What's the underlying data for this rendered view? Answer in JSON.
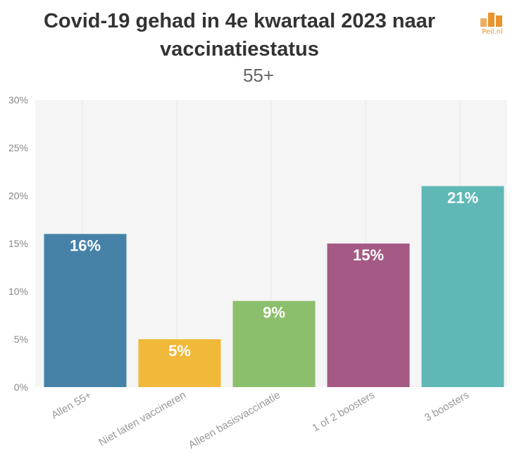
{
  "title_line1": "Covid-19 gehad in 4e kwartaal 2023 naar",
  "title_line2": "vaccinatiestatus",
  "subtitle": "55+",
  "logo_text": "Peil.nl",
  "colors": {
    "bar_1": "#4682a8",
    "bar_2": "#f0b93a",
    "bar_3": "#8cbf6b",
    "bar_4": "#a55985",
    "bar_5": "#60b8b6",
    "logo": "#e8932b",
    "plot_bg": "#f5f5f5"
  },
  "chart_data": {
    "type": "bar",
    "categories": [
      "Allen 55+",
      "Niet laten vaccineren",
      "Alleen basisvaccinatie",
      "1 of 2 boosters",
      "3 boosters"
    ],
    "values": [
      16,
      5,
      9,
      15,
      21
    ],
    "data_labels": [
      "16%",
      "5%",
      "9%",
      "15%",
      "21%"
    ],
    "ylim": [
      0,
      30
    ],
    "yticks": [
      "0%",
      "5%",
      "10%",
      "15%",
      "20%",
      "25%",
      "30%"
    ],
    "ytick_values": [
      0,
      5,
      10,
      15,
      20,
      25,
      30
    ],
    "grid": true,
    "xlabel": "",
    "ylabel": ""
  }
}
